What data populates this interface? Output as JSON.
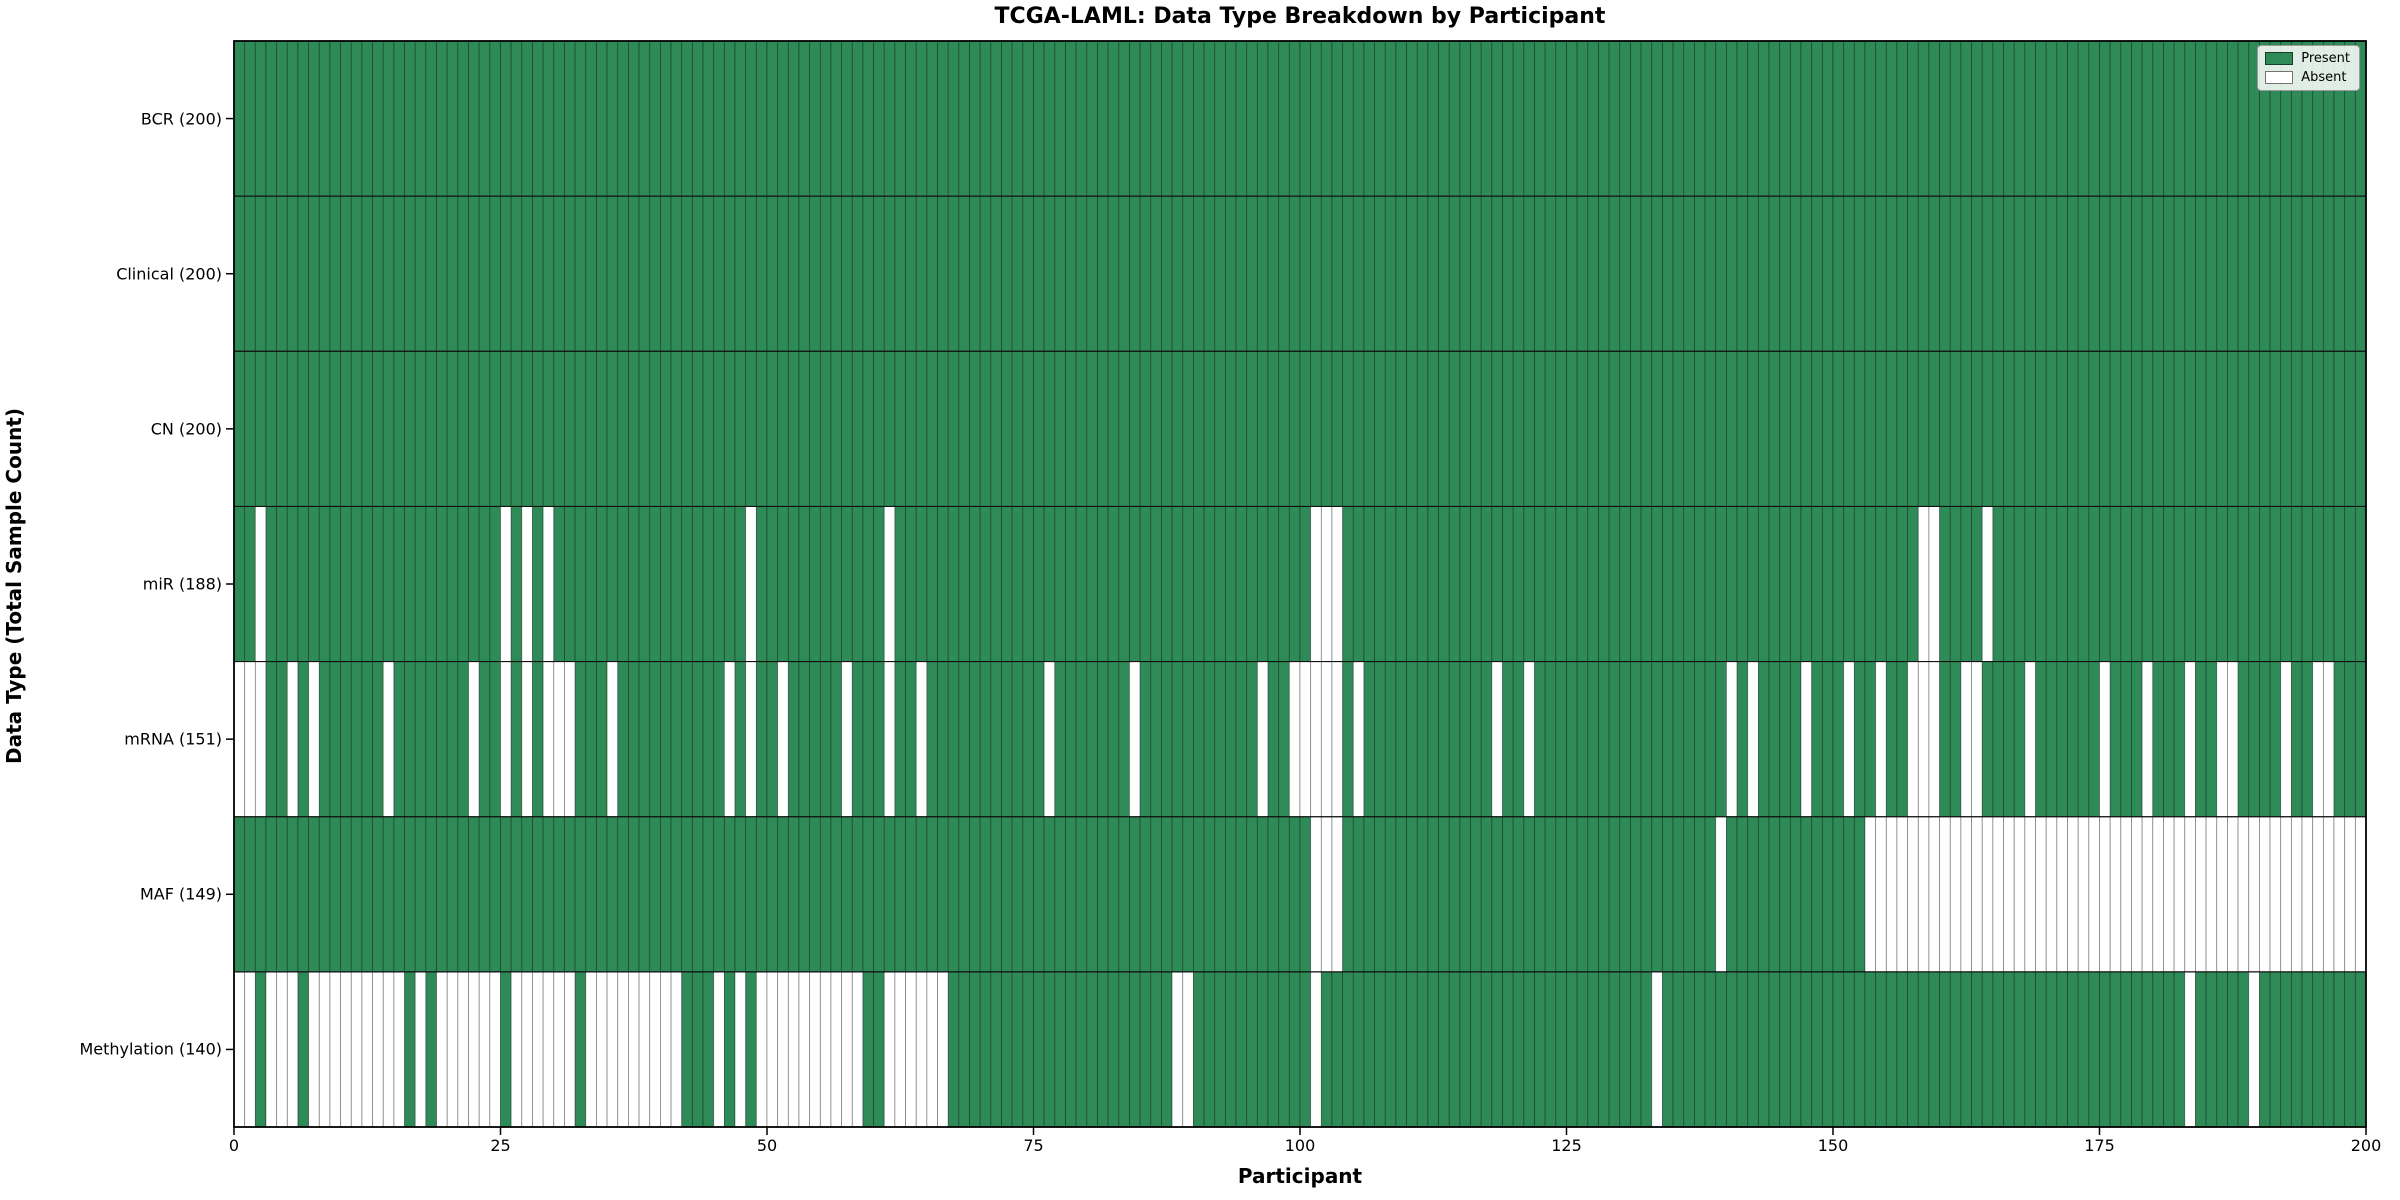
{
  "figure": {
    "title": "TCGA-LAML: Data Type Breakdown by Participant",
    "xlabel": "Participant",
    "ylabel": "Data Type (Total Sample Count)"
  },
  "colors": {
    "present": "#2E8B57",
    "absent": "#FFFFFF",
    "cell_grid": "rgba(0,0,0,0.40)",
    "row_divider": "#111111",
    "spine": "#000000"
  },
  "legend": {
    "items": [
      {
        "label": "Present",
        "color": "#2E8B57"
      },
      {
        "label": "Absent",
        "color": "#FFFFFF"
      }
    ]
  },
  "chart_data": {
    "type": "heatmap",
    "title": "TCGA-LAML: Data Type Breakdown by Participant",
    "xlabel": "Participant",
    "ylabel": "Data Type (Total Sample Count)",
    "n_participants": 200,
    "x_ticks": [
      0,
      25,
      50,
      75,
      100,
      125,
      150,
      175,
      200
    ],
    "legend_position": "upper right",
    "value_encoding": {
      "present": 1,
      "absent": 0
    },
    "rows": [
      {
        "name": "BCR",
        "label": "BCR (200)",
        "present_count": 200,
        "absent_participants": []
      },
      {
        "name": "Clinical",
        "label": "Clinical (200)",
        "present_count": 200,
        "absent_participants": []
      },
      {
        "name": "CN",
        "label": "CN (200)",
        "present_count": 200,
        "absent_participants": []
      },
      {
        "name": "miR",
        "label": "miR (188)",
        "present_count": 188,
        "absent_participants": [
          2,
          25,
          27,
          29,
          48,
          61,
          101,
          102,
          103,
          158,
          159,
          164
        ]
      },
      {
        "name": "mRNA",
        "label": "mRNA (151)",
        "present_count": 151,
        "absent_participants": [
          0,
          1,
          2,
          5,
          7,
          14,
          22,
          25,
          27,
          29,
          30,
          31,
          35,
          46,
          48,
          51,
          57,
          61,
          64,
          76,
          84,
          96,
          99,
          100,
          101,
          102,
          103,
          105,
          118,
          121,
          140,
          142,
          147,
          151,
          154,
          157,
          158,
          159,
          162,
          163,
          168,
          175,
          179,
          183,
          186,
          187,
          192,
          195,
          196
        ]
      },
      {
        "name": "MAF",
        "label": "MAF (149)",
        "present_count": 149,
        "absent_participants": [
          101,
          102,
          103,
          139,
          153,
          154,
          155,
          156,
          157,
          158,
          159,
          160,
          161,
          162,
          163,
          164,
          165,
          166,
          167,
          168,
          169,
          170,
          171,
          172,
          173,
          174,
          175,
          176,
          177,
          178,
          179,
          180,
          181,
          182,
          183,
          184,
          185,
          186,
          187,
          188,
          189,
          190,
          191,
          192,
          193,
          194,
          195,
          196,
          197,
          198,
          199
        ]
      },
      {
        "name": "Methylation",
        "label": "Methylation (140)",
        "present_count": 140,
        "absent_participants": [
          0,
          1,
          3,
          4,
          5,
          7,
          8,
          9,
          10,
          11,
          12,
          13,
          14,
          15,
          17,
          19,
          20,
          21,
          22,
          23,
          24,
          26,
          27,
          28,
          29,
          30,
          31,
          33,
          34,
          35,
          36,
          37,
          38,
          39,
          40,
          41,
          45,
          47,
          49,
          50,
          51,
          52,
          53,
          54,
          55,
          56,
          57,
          58,
          61,
          62,
          63,
          64,
          65,
          66,
          88,
          89,
          101,
          133,
          183,
          189
        ]
      }
    ]
  }
}
